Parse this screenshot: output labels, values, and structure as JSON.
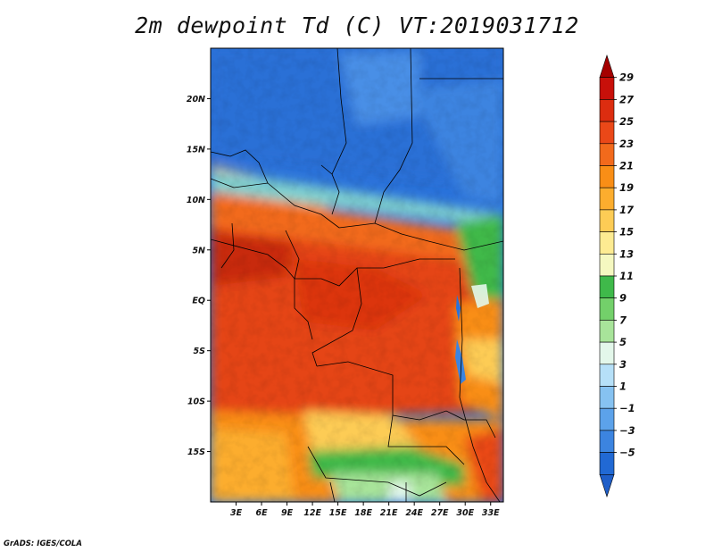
{
  "title": "2m dewpoint Td (C) VT:2019031712",
  "credit": "GrADS: IGES/COLA",
  "lat_ticks": [
    "20N",
    "15N",
    "10N",
    "5N",
    "EQ",
    "5S",
    "10S",
    "15S"
  ],
  "lat_values": [
    20,
    15,
    10,
    5,
    0,
    -5,
    -10,
    -15
  ],
  "lon_ticks": [
    "3E",
    "6E",
    "9E",
    "12E",
    "15E",
    "18E",
    "21E",
    "24E",
    "27E",
    "30E",
    "33E"
  ],
  "lon_values": [
    3,
    6,
    9,
    12,
    15,
    18,
    21,
    24,
    27,
    30,
    33
  ],
  "map_extent": {
    "lon": [
      0,
      34.5
    ],
    "lat": [
      -20,
      25
    ]
  },
  "colorbar": {
    "labels": [
      "29",
      "27",
      "25",
      "23",
      "21",
      "19",
      "17",
      "15",
      "13",
      "11",
      "9",
      "7",
      "5",
      "3",
      "1",
      "-1",
      "-3",
      "-5"
    ],
    "colors": [
      "#a50000",
      "#c8100a",
      "#dc2d10",
      "#ea4818",
      "#f26a1c",
      "#f98e16",
      "#fcad2e",
      "#fdcc55",
      "#fdeb92",
      "#f5f8c0",
      "#3fb94a",
      "#73d06a",
      "#a8e49a",
      "#e3f7ea",
      "#b6e0f8",
      "#86c2f1",
      "#5ca2ea",
      "#3c84e0",
      "#2169d4",
      "#1f5ec8"
    ]
  }
}
